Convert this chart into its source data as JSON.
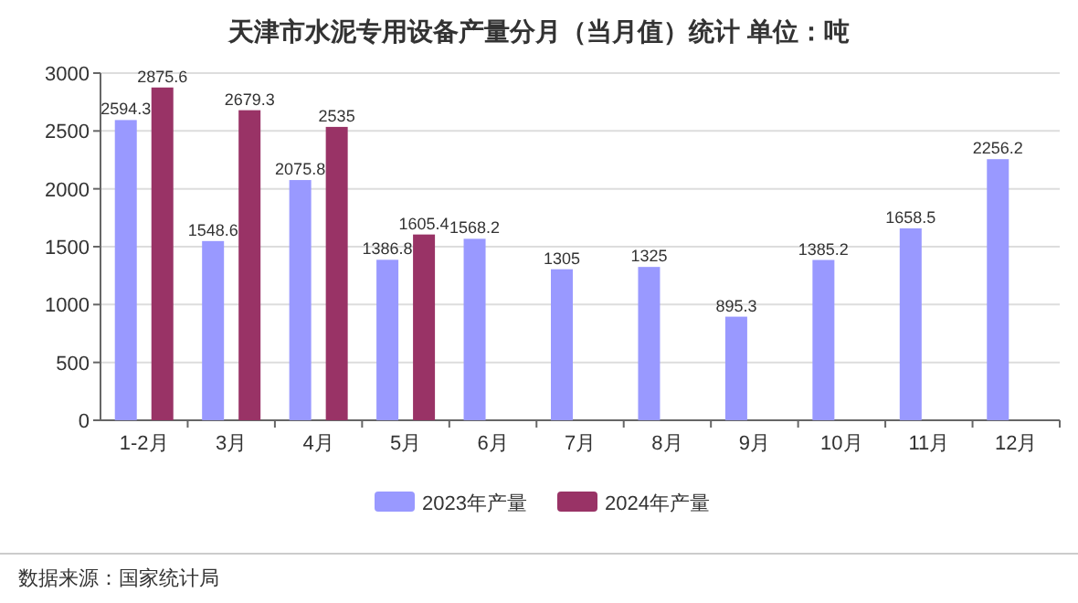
{
  "chart_data": {
    "type": "bar",
    "title": "天津市水泥专用设备产量分月（当月值）统计 单位：吨",
    "categories": [
      "1-2月",
      "3月",
      "4月",
      "5月",
      "6月",
      "7月",
      "8月",
      "9月",
      "10月",
      "11月",
      "12月"
    ],
    "series": [
      {
        "name": "2023年产量",
        "color": "#9999ff",
        "values": [
          2594.3,
          1548.6,
          2075.8,
          1386.8,
          1568.2,
          1305,
          1325,
          895.3,
          1385.2,
          1658.5,
          2256.2
        ]
      },
      {
        "name": "2024年产量",
        "color": "#993366",
        "values": [
          2875.6,
          2679.3,
          2535,
          1605.4,
          null,
          null,
          null,
          null,
          null,
          null,
          null
        ]
      }
    ],
    "ylim": [
      0,
      3000
    ],
    "yticks": [
      0,
      500,
      1000,
      1500,
      2000,
      2500,
      3000
    ],
    "grid": "y",
    "legend": "bottom",
    "data_labels": true,
    "annotations": [
      "数据来源：国家统计局"
    ]
  }
}
